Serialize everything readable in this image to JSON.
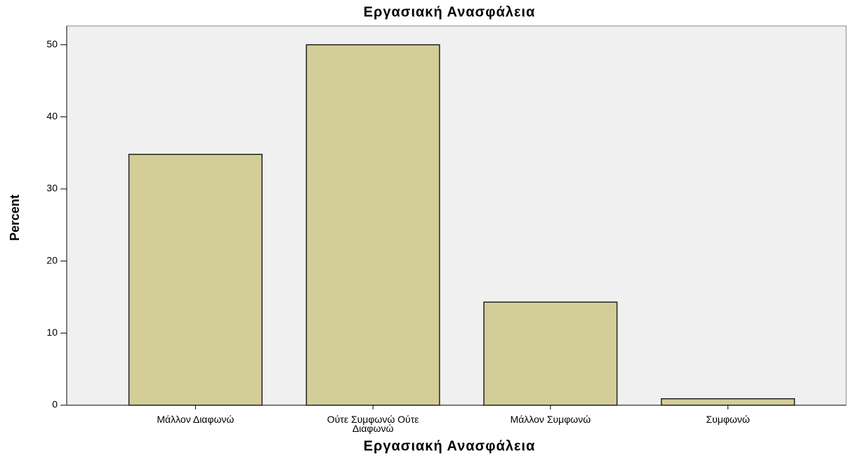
{
  "chart_data": {
    "type": "bar",
    "title": "Εργασιακή Ανασφάλεια",
    "x_label": "Εργασιακή Ανασφάλεια",
    "y_label": "Percent",
    "categories": [
      "Μάλλον Διαφωνώ",
      "Ούτε Συμφωνώ Ούτε Διαφωνώ",
      "Μάλλον Συμφωνώ",
      "Συμφωνώ"
    ],
    "values": [
      34.8,
      50,
      14.3,
      0.9
    ],
    "color": "#d3ce97",
    "ylim": [
      0,
      52.6
    ],
    "yticks": [
      0,
      10,
      20,
      30,
      40,
      50
    ],
    "grid": false
  }
}
